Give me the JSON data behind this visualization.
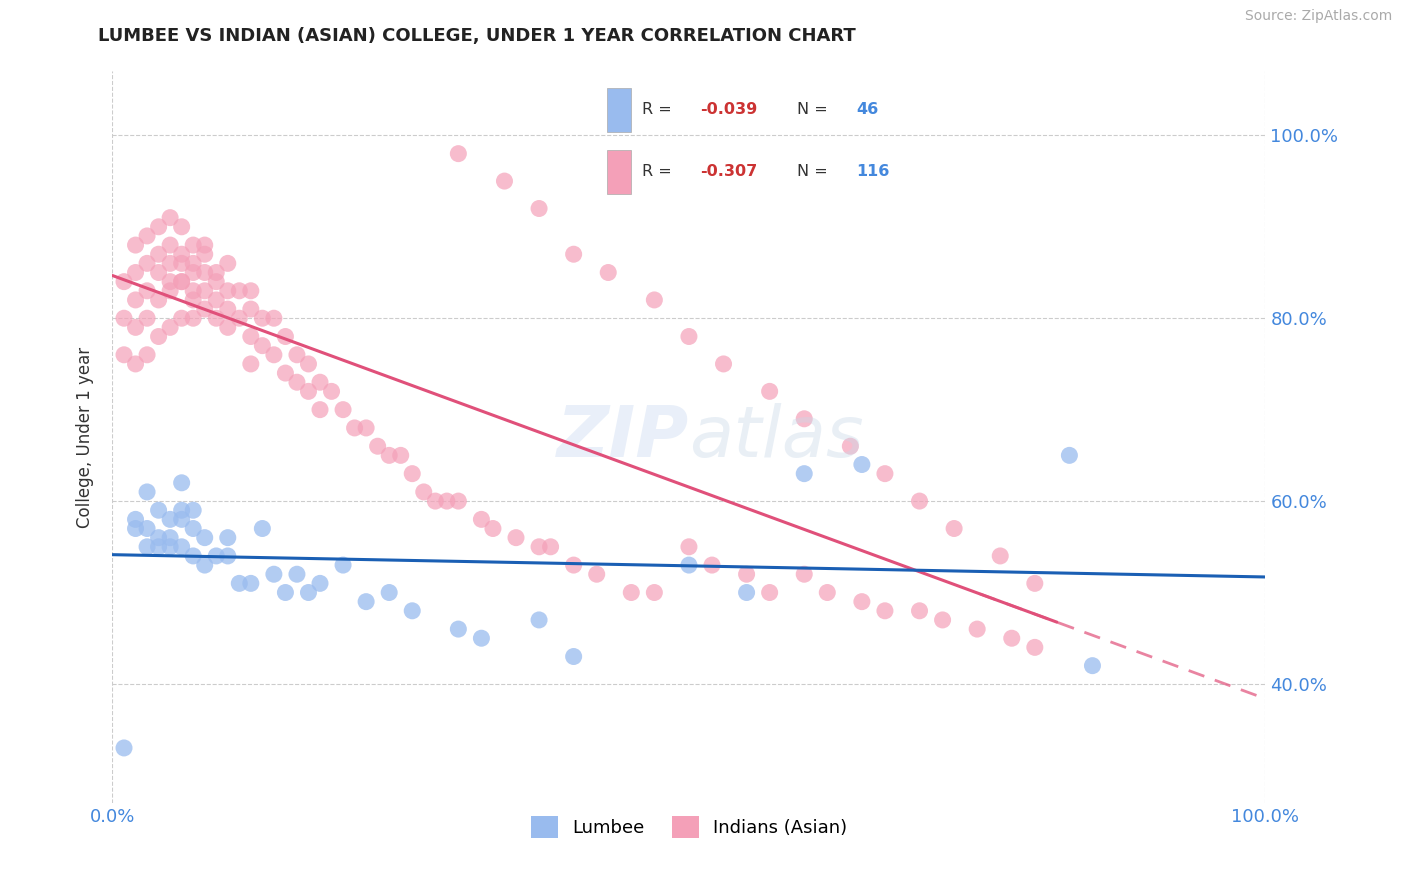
{
  "title": "LUMBEE VS INDIAN (ASIAN) COLLEGE, UNDER 1 YEAR CORRELATION CHART",
  "source": "Source: ZipAtlas.com",
  "ylabel": "College, Under 1 year",
  "legend_lumbee": "Lumbee",
  "legend_indian": "Indians (Asian)",
  "r_lumbee": -0.039,
  "n_lumbee": 46,
  "r_indian": -0.307,
  "n_indian": 116,
  "xlim": [
    0.0,
    1.0
  ],
  "ylim": [
    0.27,
    1.07
  ],
  "yticks": [
    0.4,
    0.6,
    0.8,
    1.0
  ],
  "ytick_labels": [
    "40.0%",
    "60.0%",
    "80.0%",
    "100.0%"
  ],
  "xticks": [
    0.0,
    1.0
  ],
  "xtick_labels": [
    "0.0%",
    "100.0%"
  ],
  "color_lumbee": "#99bbee",
  "color_indian": "#f4a0b8",
  "line_color_lumbee": "#1a5fb4",
  "line_color_indian": "#e0507a",
  "background_color": "#ffffff",
  "grid_color": "#cccccc",
  "lumbee_x": [
    0.01,
    0.02,
    0.02,
    0.03,
    0.03,
    0.03,
    0.04,
    0.04,
    0.04,
    0.05,
    0.05,
    0.05,
    0.06,
    0.06,
    0.06,
    0.06,
    0.07,
    0.07,
    0.07,
    0.08,
    0.08,
    0.09,
    0.1,
    0.1,
    0.11,
    0.12,
    0.13,
    0.14,
    0.15,
    0.16,
    0.17,
    0.18,
    0.2,
    0.22,
    0.24,
    0.26,
    0.3,
    0.32,
    0.37,
    0.4,
    0.5,
    0.55,
    0.6,
    0.65,
    0.83,
    0.85
  ],
  "lumbee_y": [
    0.33,
    0.57,
    0.58,
    0.55,
    0.57,
    0.61,
    0.55,
    0.56,
    0.59,
    0.55,
    0.58,
    0.56,
    0.55,
    0.58,
    0.59,
    0.62,
    0.54,
    0.57,
    0.59,
    0.53,
    0.56,
    0.54,
    0.54,
    0.56,
    0.51,
    0.51,
    0.57,
    0.52,
    0.5,
    0.52,
    0.5,
    0.51,
    0.53,
    0.49,
    0.5,
    0.48,
    0.46,
    0.45,
    0.47,
    0.43,
    0.53,
    0.5,
    0.63,
    0.64,
    0.65,
    0.42
  ],
  "indian_x": [
    0.01,
    0.01,
    0.01,
    0.02,
    0.02,
    0.02,
    0.02,
    0.02,
    0.03,
    0.03,
    0.03,
    0.03,
    0.03,
    0.04,
    0.04,
    0.04,
    0.04,
    0.04,
    0.05,
    0.05,
    0.05,
    0.05,
    0.05,
    0.05,
    0.06,
    0.06,
    0.06,
    0.06,
    0.06,
    0.06,
    0.07,
    0.07,
    0.07,
    0.07,
    0.07,
    0.07,
    0.08,
    0.08,
    0.08,
    0.08,
    0.08,
    0.09,
    0.09,
    0.09,
    0.09,
    0.1,
    0.1,
    0.1,
    0.1,
    0.11,
    0.11,
    0.12,
    0.12,
    0.12,
    0.12,
    0.13,
    0.13,
    0.14,
    0.14,
    0.15,
    0.15,
    0.16,
    0.16,
    0.17,
    0.17,
    0.18,
    0.18,
    0.19,
    0.2,
    0.21,
    0.22,
    0.23,
    0.24,
    0.25,
    0.26,
    0.27,
    0.28,
    0.29,
    0.3,
    0.32,
    0.33,
    0.35,
    0.37,
    0.38,
    0.4,
    0.42,
    0.45,
    0.47,
    0.5,
    0.52,
    0.55,
    0.57,
    0.6,
    0.62,
    0.65,
    0.67,
    0.7,
    0.72,
    0.75,
    0.78,
    0.8,
    0.3,
    0.34,
    0.37,
    0.4,
    0.43,
    0.47,
    0.5,
    0.53,
    0.57,
    0.6,
    0.64,
    0.67,
    0.7,
    0.73,
    0.77,
    0.8
  ],
  "indian_y": [
    0.76,
    0.8,
    0.84,
    0.75,
    0.79,
    0.82,
    0.85,
    0.88,
    0.76,
    0.8,
    0.83,
    0.86,
    0.89,
    0.78,
    0.82,
    0.85,
    0.87,
    0.9,
    0.79,
    0.83,
    0.86,
    0.88,
    0.91,
    0.84,
    0.8,
    0.84,
    0.87,
    0.9,
    0.84,
    0.86,
    0.8,
    0.83,
    0.86,
    0.88,
    0.82,
    0.85,
    0.81,
    0.83,
    0.87,
    0.85,
    0.88,
    0.82,
    0.85,
    0.8,
    0.84,
    0.81,
    0.83,
    0.86,
    0.79,
    0.8,
    0.83,
    0.81,
    0.83,
    0.78,
    0.75,
    0.8,
    0.77,
    0.8,
    0.76,
    0.78,
    0.74,
    0.76,
    0.73,
    0.75,
    0.72,
    0.73,
    0.7,
    0.72,
    0.7,
    0.68,
    0.68,
    0.66,
    0.65,
    0.65,
    0.63,
    0.61,
    0.6,
    0.6,
    0.6,
    0.58,
    0.57,
    0.56,
    0.55,
    0.55,
    0.53,
    0.52,
    0.5,
    0.5,
    0.55,
    0.53,
    0.52,
    0.5,
    0.52,
    0.5,
    0.49,
    0.48,
    0.48,
    0.47,
    0.46,
    0.45,
    0.44,
    0.98,
    0.95,
    0.92,
    0.87,
    0.85,
    0.82,
    0.78,
    0.75,
    0.72,
    0.69,
    0.66,
    0.63,
    0.6,
    0.57,
    0.54,
    0.51
  ]
}
